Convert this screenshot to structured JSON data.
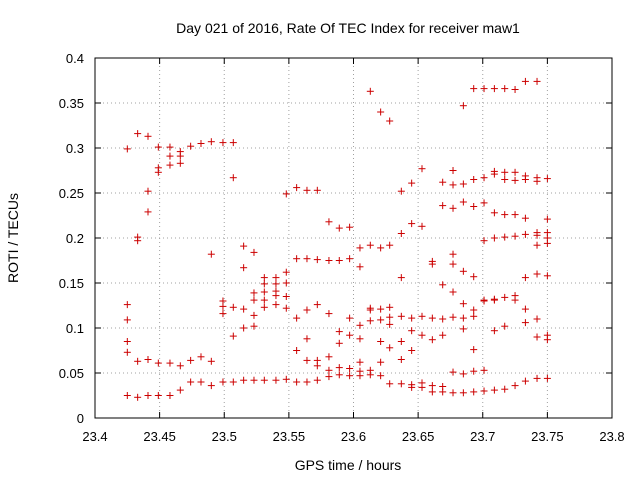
{
  "chart_data": {
    "type": "scatter",
    "title": "Day 021 of 2016, Rate Of TEC Index for receiver maw1",
    "xlabel": "GPS time / hours",
    "ylabel": "ROTI / TECUs",
    "xlim": [
      23.4,
      23.8
    ],
    "ylim": [
      0,
      0.4
    ],
    "xticks": [
      "23.4",
      "23.45",
      "23.5",
      "23.55",
      "23.6",
      "23.65",
      "23.7",
      "23.75",
      "23.8"
    ],
    "yticks": [
      "0",
      "0.05",
      "0.1",
      "0.15",
      "0.2",
      "0.25",
      "0.3",
      "0.35",
      "0.4"
    ],
    "grid": true,
    "marker": "+",
    "color": "#cc0000",
    "points": [
      [
        23.425,
        0.126
      ],
      [
        23.425,
        0.109
      ],
      [
        23.425,
        0.085
      ],
      [
        23.425,
        0.073
      ],
      [
        23.425,
        0.025
      ],
      [
        23.425,
        0.299
      ],
      [
        23.433,
        0.316
      ],
      [
        23.433,
        0.201
      ],
      [
        23.433,
        0.197
      ],
      [
        23.433,
        0.063
      ],
      [
        23.433,
        0.023
      ],
      [
        23.441,
        0.313
      ],
      [
        23.441,
        0.252
      ],
      [
        23.441,
        0.229
      ],
      [
        23.441,
        0.065
      ],
      [
        23.441,
        0.025
      ],
      [
        23.449,
        0.301
      ],
      [
        23.449,
        0.278
      ],
      [
        23.449,
        0.273
      ],
      [
        23.449,
        0.061
      ],
      [
        23.449,
        0.025
      ],
      [
        23.458,
        0.301
      ],
      [
        23.458,
        0.291
      ],
      [
        23.458,
        0.281
      ],
      [
        23.458,
        0.061
      ],
      [
        23.458,
        0.025
      ],
      [
        23.466,
        0.296
      ],
      [
        23.466,
        0.291
      ],
      [
        23.466,
        0.283
      ],
      [
        23.466,
        0.058
      ],
      [
        23.466,
        0.031
      ],
      [
        23.474,
        0.302
      ],
      [
        23.474,
        0.064
      ],
      [
        23.474,
        0.04
      ],
      [
        23.482,
        0.305
      ],
      [
        23.482,
        0.068
      ],
      [
        23.482,
        0.04
      ],
      [
        23.49,
        0.307
      ],
      [
        23.49,
        0.182
      ],
      [
        23.49,
        0.063
      ],
      [
        23.49,
        0.036
      ],
      [
        23.499,
        0.306
      ],
      [
        23.499,
        0.13
      ],
      [
        23.499,
        0.124
      ],
      [
        23.499,
        0.116
      ],
      [
        23.499,
        0.04
      ],
      [
        23.507,
        0.306
      ],
      [
        23.507,
        0.267
      ],
      [
        23.507,
        0.123
      ],
      [
        23.507,
        0.091
      ],
      [
        23.507,
        0.04
      ],
      [
        23.515,
        0.191
      ],
      [
        23.515,
        0.167
      ],
      [
        23.515,
        0.121
      ],
      [
        23.515,
        0.1
      ],
      [
        23.515,
        0.042
      ],
      [
        23.523,
        0.184
      ],
      [
        23.523,
        0.139
      ],
      [
        23.523,
        0.131
      ],
      [
        23.523,
        0.114
      ],
      [
        23.523,
        0.102
      ],
      [
        23.523,
        0.042
      ],
      [
        23.531,
        0.156
      ],
      [
        23.531,
        0.149
      ],
      [
        23.531,
        0.14
      ],
      [
        23.531,
        0.131
      ],
      [
        23.531,
        0.123
      ],
      [
        23.531,
        0.042
      ],
      [
        23.54,
        0.156
      ],
      [
        23.54,
        0.149
      ],
      [
        23.54,
        0.141
      ],
      [
        23.54,
        0.136
      ],
      [
        23.54,
        0.126
      ],
      [
        23.54,
        0.042
      ],
      [
        23.548,
        0.249
      ],
      [
        23.548,
        0.162
      ],
      [
        23.548,
        0.15
      ],
      [
        23.548,
        0.135
      ],
      [
        23.548,
        0.122
      ],
      [
        23.548,
        0.043
      ],
      [
        23.556,
        0.256
      ],
      [
        23.556,
        0.177
      ],
      [
        23.556,
        0.111
      ],
      [
        23.556,
        0.075
      ],
      [
        23.556,
        0.04
      ],
      [
        23.564,
        0.253
      ],
      [
        23.564,
        0.177
      ],
      [
        23.564,
        0.12
      ],
      [
        23.564,
        0.088
      ],
      [
        23.564,
        0.064
      ],
      [
        23.564,
        0.04
      ],
      [
        23.572,
        0.253
      ],
      [
        23.572,
        0.176
      ],
      [
        23.572,
        0.126
      ],
      [
        23.572,
        0.064
      ],
      [
        23.572,
        0.058
      ],
      [
        23.572,
        0.042
      ],
      [
        23.581,
        0.218
      ],
      [
        23.581,
        0.175
      ],
      [
        23.581,
        0.116
      ],
      [
        23.581,
        0.068
      ],
      [
        23.581,
        0.053
      ],
      [
        23.581,
        0.046
      ],
      [
        23.589,
        0.211
      ],
      [
        23.589,
        0.175
      ],
      [
        23.589,
        0.096
      ],
      [
        23.589,
        0.083
      ],
      [
        23.589,
        0.056
      ],
      [
        23.589,
        0.048
      ],
      [
        23.597,
        0.212
      ],
      [
        23.597,
        0.177
      ],
      [
        23.597,
        0.111
      ],
      [
        23.597,
        0.092
      ],
      [
        23.597,
        0.055
      ],
      [
        23.597,
        0.047
      ],
      [
        23.605,
        0.189
      ],
      [
        23.605,
        0.168
      ],
      [
        23.605,
        0.103
      ],
      [
        23.605,
        0.088
      ],
      [
        23.605,
        0.062
      ],
      [
        23.605,
        0.052
      ],
      [
        23.605,
        0.047
      ],
      [
        23.613,
        0.363
      ],
      [
        23.613,
        0.192
      ],
      [
        23.613,
        0.122
      ],
      [
        23.613,
        0.12
      ],
      [
        23.613,
        0.108
      ],
      [
        23.613,
        0.053
      ],
      [
        23.613,
        0.048
      ],
      [
        23.621,
        0.34
      ],
      [
        23.621,
        0.189
      ],
      [
        23.621,
        0.121
      ],
      [
        23.621,
        0.109
      ],
      [
        23.621,
        0.085
      ],
      [
        23.621,
        0.062
      ],
      [
        23.621,
        0.047
      ],
      [
        23.628,
        0.33
      ],
      [
        23.628,
        0.192
      ],
      [
        23.628,
        0.123
      ],
      [
        23.628,
        0.112
      ],
      [
        23.628,
        0.104
      ],
      [
        23.628,
        0.078
      ],
      [
        23.628,
        0.038
      ],
      [
        23.637,
        0.252
      ],
      [
        23.637,
        0.205
      ],
      [
        23.637,
        0.156
      ],
      [
        23.637,
        0.113
      ],
      [
        23.637,
        0.085
      ],
      [
        23.637,
        0.065
      ],
      [
        23.637,
        0.038
      ],
      [
        23.645,
        0.261
      ],
      [
        23.645,
        0.216
      ],
      [
        23.645,
        0.111
      ],
      [
        23.645,
        0.097
      ],
      [
        23.645,
        0.075
      ],
      [
        23.645,
        0.037
      ],
      [
        23.645,
        0.034
      ],
      [
        23.653,
        0.277
      ],
      [
        23.653,
        0.213
      ],
      [
        23.653,
        0.113
      ],
      [
        23.653,
        0.092
      ],
      [
        23.653,
        0.039
      ],
      [
        23.653,
        0.034
      ],
      [
        23.661,
        0.174
      ],
      [
        23.661,
        0.171
      ],
      [
        23.661,
        0.111
      ],
      [
        23.661,
        0.087
      ],
      [
        23.661,
        0.036
      ],
      [
        23.661,
        0.029
      ],
      [
        23.669,
        0.262
      ],
      [
        23.669,
        0.236
      ],
      [
        23.669,
        0.148
      ],
      [
        23.669,
        0.11
      ],
      [
        23.669,
        0.092
      ],
      [
        23.669,
        0.035
      ],
      [
        23.669,
        0.029
      ],
      [
        23.677,
        0.275
      ],
      [
        23.677,
        0.259
      ],
      [
        23.677,
        0.233
      ],
      [
        23.677,
        0.182
      ],
      [
        23.677,
        0.171
      ],
      [
        23.677,
        0.14
      ],
      [
        23.677,
        0.112
      ],
      [
        23.677,
        0.051
      ],
      [
        23.677,
        0.028
      ],
      [
        23.685,
        0.347
      ],
      [
        23.685,
        0.26
      ],
      [
        23.685,
        0.24
      ],
      [
        23.685,
        0.163
      ],
      [
        23.685,
        0.127
      ],
      [
        23.685,
        0.111
      ],
      [
        23.685,
        0.099
      ],
      [
        23.685,
        0.049
      ],
      [
        23.685,
        0.028
      ],
      [
        23.693,
        0.366
      ],
      [
        23.693,
        0.265
      ],
      [
        23.693,
        0.235
      ],
      [
        23.693,
        0.157
      ],
      [
        23.693,
        0.12
      ],
      [
        23.693,
        0.113
      ],
      [
        23.693,
        0.076
      ],
      [
        23.693,
        0.052
      ],
      [
        23.693,
        0.029
      ],
      [
        23.701,
        0.366
      ],
      [
        23.701,
        0.267
      ],
      [
        23.701,
        0.239
      ],
      [
        23.701,
        0.197
      ],
      [
        23.701,
        0.131
      ],
      [
        23.701,
        0.13
      ],
      [
        23.701,
        0.053
      ],
      [
        23.701,
        0.03
      ],
      [
        23.709,
        0.366
      ],
      [
        23.709,
        0.274
      ],
      [
        23.709,
        0.271
      ],
      [
        23.709,
        0.228
      ],
      [
        23.709,
        0.2
      ],
      [
        23.709,
        0.132
      ],
      [
        23.709,
        0.131
      ],
      [
        23.709,
        0.097
      ],
      [
        23.709,
        0.031
      ],
      [
        23.717,
        0.366
      ],
      [
        23.717,
        0.273
      ],
      [
        23.717,
        0.265
      ],
      [
        23.717,
        0.226
      ],
      [
        23.717,
        0.201
      ],
      [
        23.717,
        0.134
      ],
      [
        23.717,
        0.102
      ],
      [
        23.717,
        0.032
      ],
      [
        23.725,
        0.365
      ],
      [
        23.725,
        0.273
      ],
      [
        23.725,
        0.264
      ],
      [
        23.725,
        0.226
      ],
      [
        23.725,
        0.202
      ],
      [
        23.725,
        0.136
      ],
      [
        23.725,
        0.131
      ],
      [
        23.725,
        0.036
      ],
      [
        23.733,
        0.374
      ],
      [
        23.733,
        0.269
      ],
      [
        23.733,
        0.265
      ],
      [
        23.733,
        0.222
      ],
      [
        23.733,
        0.204
      ],
      [
        23.733,
        0.156
      ],
      [
        23.733,
        0.121
      ],
      [
        23.733,
        0.106
      ],
      [
        23.733,
        0.041
      ],
      [
        23.742,
        0.374
      ],
      [
        23.742,
        0.267
      ],
      [
        23.742,
        0.263
      ],
      [
        23.742,
        0.206
      ],
      [
        23.742,
        0.203
      ],
      [
        23.742,
        0.192
      ],
      [
        23.742,
        0.16
      ],
      [
        23.742,
        0.11
      ],
      [
        23.742,
        0.09
      ],
      [
        23.742,
        0.044
      ],
      [
        23.75,
        0.266
      ],
      [
        23.75,
        0.221
      ],
      [
        23.75,
        0.206
      ],
      [
        23.75,
        0.2
      ],
      [
        23.75,
        0.194
      ],
      [
        23.75,
        0.158
      ],
      [
        23.75,
        0.092
      ],
      [
        23.75,
        0.087
      ],
      [
        23.75,
        0.044
      ]
    ]
  }
}
